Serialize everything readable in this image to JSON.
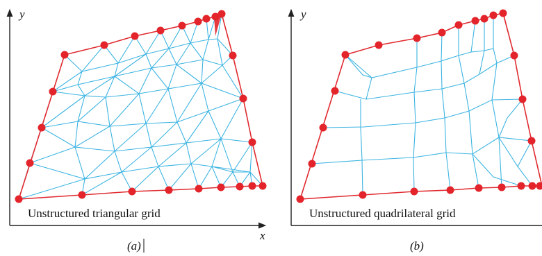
{
  "figure": {
    "panel_a": {
      "tag": "(a)",
      "caption": "Unstructured triangular grid",
      "x_axis_label": "x",
      "y_axis_label": "y"
    },
    "panel_b": {
      "tag": "(b)",
      "caption": "Unstructured quadrilateral grid",
      "y_axis_label": "y"
    },
    "colors": {
      "boundary": "#e02a2f",
      "mesh": "#3db4e2",
      "node": "#e3242b",
      "axes": "#222222"
    }
  }
}
